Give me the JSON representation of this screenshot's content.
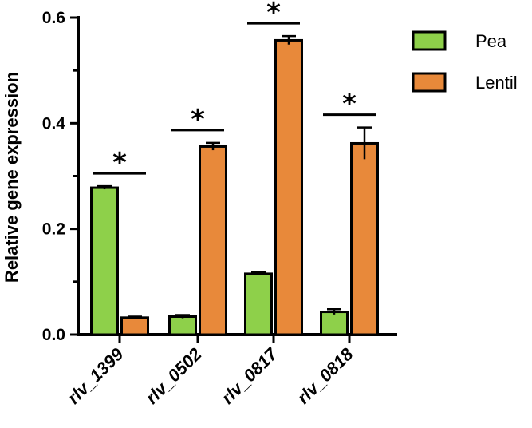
{
  "chart_data": {
    "type": "bar",
    "title": "",
    "xlabel": "",
    "ylabel": "Relative gene expression",
    "ylim": [
      0,
      0.6
    ],
    "yticks": [
      "0.0",
      "0.2",
      "0.4",
      "0.6"
    ],
    "categories": [
      "rlv_1399",
      "rlv_0502",
      "rlv_0817",
      "rlv_0818"
    ],
    "series": [
      {
        "name": "Pea",
        "color": "#8ed04a",
        "values": [
          0.278,
          0.034,
          0.115,
          0.043
        ],
        "errors": [
          0.003,
          0.003,
          0.003,
          0.005
        ]
      },
      {
        "name": "Lentil",
        "color": "#e8893a",
        "values": [
          0.032,
          0.356,
          0.557,
          0.362
        ],
        "errors": [
          0.002,
          0.007,
          0.008,
          0.03
        ]
      }
    ],
    "significance": [
      "*",
      "*",
      "*",
      "*"
    ],
    "legend_position": "top-right",
    "grid": false
  }
}
